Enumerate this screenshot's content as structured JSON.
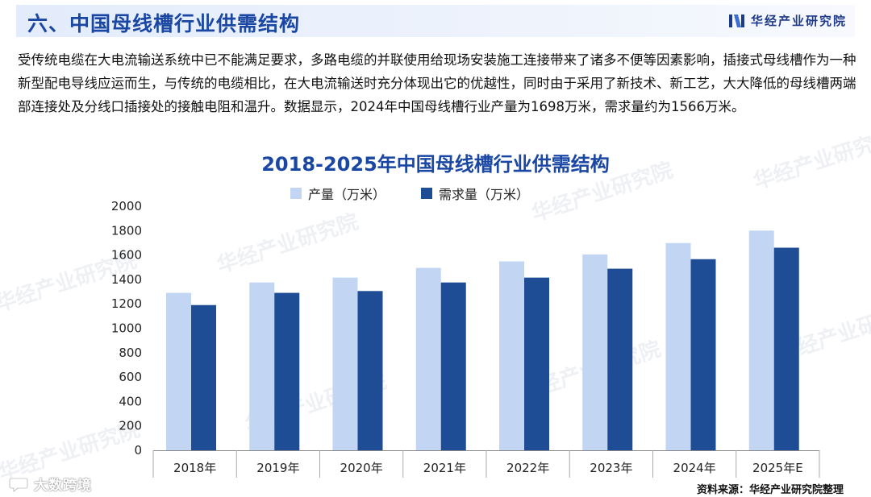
{
  "header": {
    "title": "六、中国母线槽行业供需结构",
    "brand_name": "华经产业研究院",
    "brand_color": "#1e3a8a"
  },
  "body_text": "受传统电缆在大电流输送系统中已不能满足要求，多路电缆的并联使用给现场安装施工连接带来了诸多不便等因素影响，插接式母线槽作为一种新型配电导线应运而生，与传统的电缆相比，在大电流输送时充分体现出它的优越性，同时由于采用了新技术、新工艺，大大降低的母线槽两端部连接处及分线口插接处的接触电阻和温升。数据显示，2024年中国母线槽行业产量为1698万米，需求量约为1566万米。",
  "watermark_text": "华经产业研究院",
  "source_text": "资料来源：华经产业研究院整理",
  "corner_text": "大数跨境",
  "chart_data": {
    "type": "bar",
    "title": "2018-2025年中国母线槽行业供需结构",
    "categories": [
      "2018年",
      "2019年",
      "2020年",
      "2021年",
      "2022年",
      "2023年",
      "2024年",
      "2025年E"
    ],
    "series": [
      {
        "name": "产量（万米）",
        "color": "#c2d6f4",
        "values": [
          1290,
          1375,
          1415,
          1495,
          1548,
          1605,
          1698,
          1800
        ]
      },
      {
        "name": "需求量（万米）",
        "color": "#1e4d96",
        "values": [
          1190,
          1290,
          1305,
          1375,
          1415,
          1488,
          1566,
          1660
        ]
      }
    ],
    "ylim": [
      0,
      2000
    ],
    "yticks": [
      0,
      200,
      400,
      600,
      800,
      1000,
      1200,
      1400,
      1600,
      1800,
      2000
    ],
    "legend_position": "top",
    "grid": false
  }
}
